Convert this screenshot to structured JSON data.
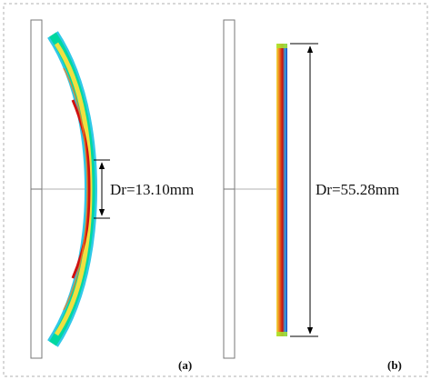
{
  "figure": {
    "panels": [
      {
        "id": "a",
        "label": "(a)",
        "dimension_text": "Dr=13.10mm",
        "state": "bent",
        "colormap": [
          "#30c8e8",
          "#00e8a0",
          "#f0e040",
          "#f08020",
          "#c81010"
        ]
      },
      {
        "id": "b",
        "label": "(b)",
        "dimension_text": "Dr=55.28mm",
        "state": "straight",
        "colormap": [
          "#30c8e8",
          "#00e8a0",
          "#f0e040",
          "#f08020",
          "#c81010"
        ]
      }
    ]
  }
}
